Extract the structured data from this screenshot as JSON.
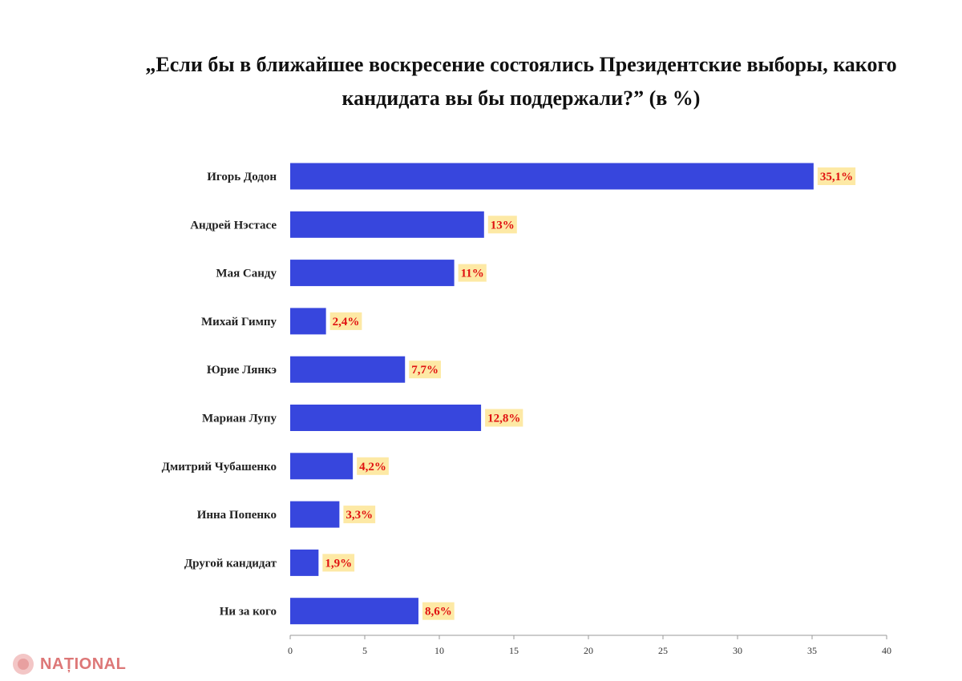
{
  "chart_data": {
    "type": "bar",
    "orientation": "horizontal",
    "title_lines": [
      "„Если бы в ближайшее воскресение состоялись Президентские выборы, какого",
      "кандидата вы бы поддержали?” (в %)"
    ],
    "categories": [
      "Игорь Додон",
      "Андрей Нэстасе",
      "Мая Санду",
      "Михай Гимпу",
      "Юрие Лянкэ",
      "Мариан Лупу",
      "Дмитрий Чубашенко",
      "Инна Попенко",
      "Другой кандидат",
      "Ни за кого"
    ],
    "values": [
      35.1,
      13,
      11,
      2.4,
      7.7,
      12.8,
      4.2,
      3.3,
      1.9,
      8.6
    ],
    "value_labels": [
      "35,1%",
      "13%",
      "11%",
      "2,4%",
      "7,7%",
      "12,8%",
      "4,2%",
      "3,3%",
      "1,9%",
      "8,6%"
    ],
    "xlim": [
      0,
      40
    ],
    "xticks": [
      0,
      5,
      10,
      15,
      20,
      25,
      30,
      35,
      40
    ],
    "grid": false,
    "colors": {
      "bar": "#3746dd",
      "label_bg": "#fde9a5",
      "label_text": "#e01010"
    }
  },
  "logo": {
    "text": "NAȚIONAL",
    "color": "#d77777"
  }
}
